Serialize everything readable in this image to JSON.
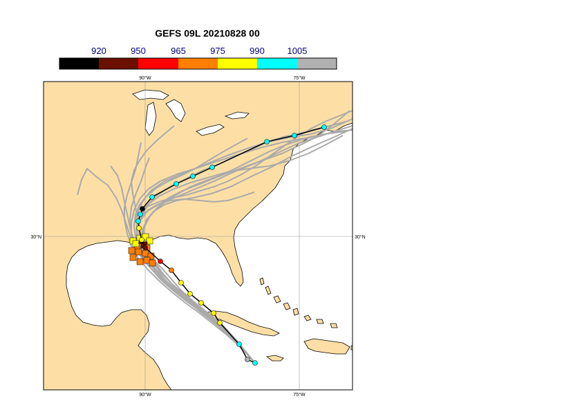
{
  "title": "GEFS 09L 20210828 00",
  "colorbar": {
    "labels": [
      "920",
      "950",
      "965",
      "975",
      "990",
      "1005"
    ],
    "colors": [
      "#000000",
      "#6b1000",
      "#ff0000",
      "#ff7f00",
      "#ffff00",
      "#00ffff",
      "#b0b0b0"
    ]
  },
  "map": {
    "lon_labels": [
      "90°W",
      "75°W"
    ],
    "lat_labels": [
      "30°N"
    ],
    "land_color": "#fddfa6",
    "water_color": "#ffffff",
    "ensemble_track_color": "#aaaaaa",
    "mean_track_color": "#000000"
  }
}
